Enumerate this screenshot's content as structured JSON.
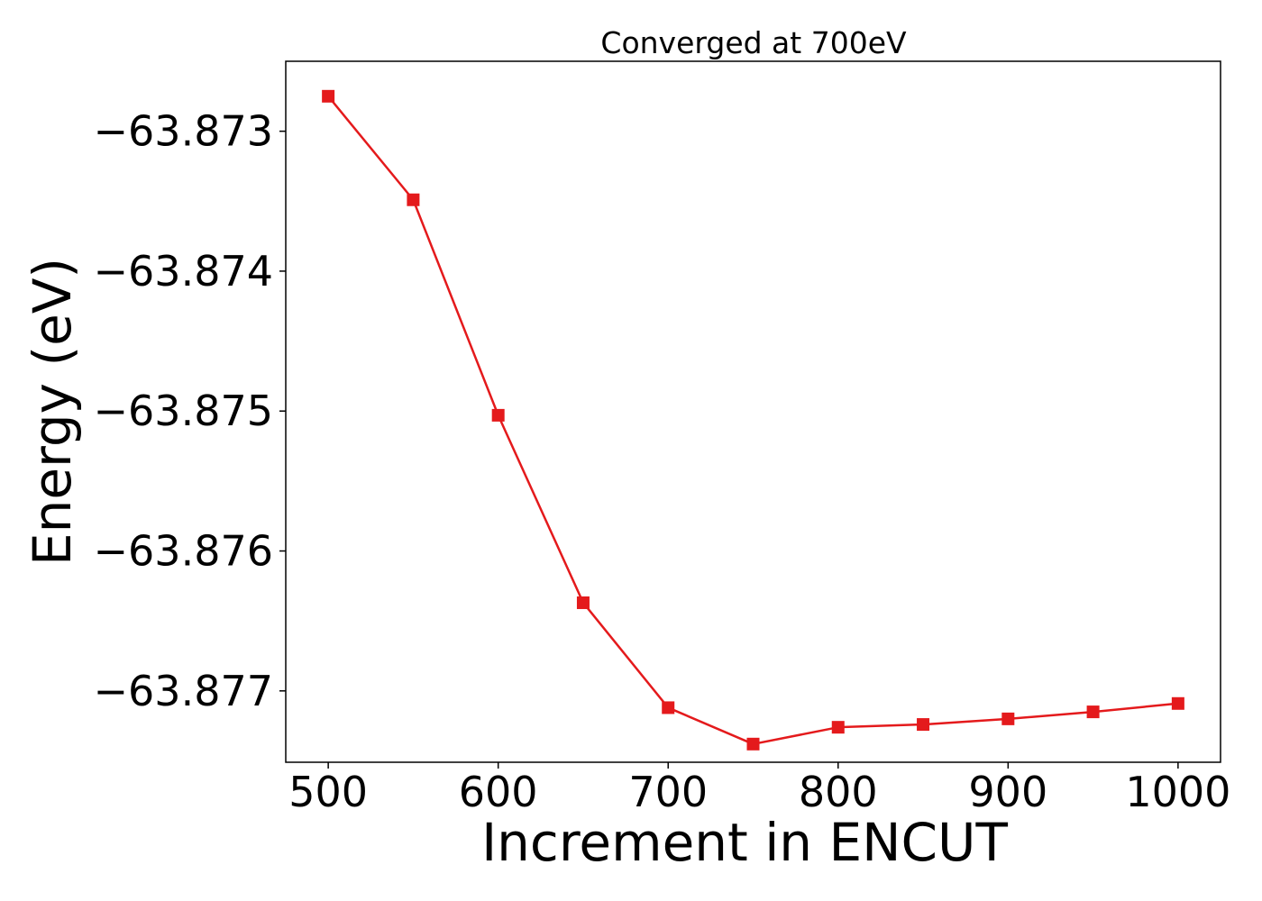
{
  "chart_data": {
    "type": "line",
    "title": "Converged at 700eV",
    "xlabel": "Increment in ENCUT",
    "ylabel": "Energy (eV)",
    "x": [
      500,
      550,
      600,
      650,
      700,
      750,
      800,
      850,
      900,
      950,
      1000
    ],
    "series": [
      {
        "values": [
          -63.87275,
          -63.87349,
          -63.87503,
          -63.87637,
          -63.87712,
          -63.87738,
          -63.87726,
          -63.87724,
          -63.8772,
          -63.87715,
          -63.87709
        ],
        "color": "#e41a1c",
        "marker": "square"
      }
    ],
    "xticks": [
      500,
      600,
      700,
      800,
      900,
      1000
    ],
    "xtick_labels": [
      "500",
      "600",
      "700",
      "800",
      "900",
      "1000"
    ],
    "yticks": [
      -63.873,
      -63.874,
      -63.875,
      -63.876,
      -63.877
    ],
    "ytick_labels": [
      "−63.873",
      "−63.874",
      "−63.875",
      "−63.876",
      "−63.877"
    ],
    "xlim": [
      475,
      1025
    ],
    "ylim": [
      -63.87751,
      -63.8725
    ],
    "grid": false,
    "legend": false
  }
}
